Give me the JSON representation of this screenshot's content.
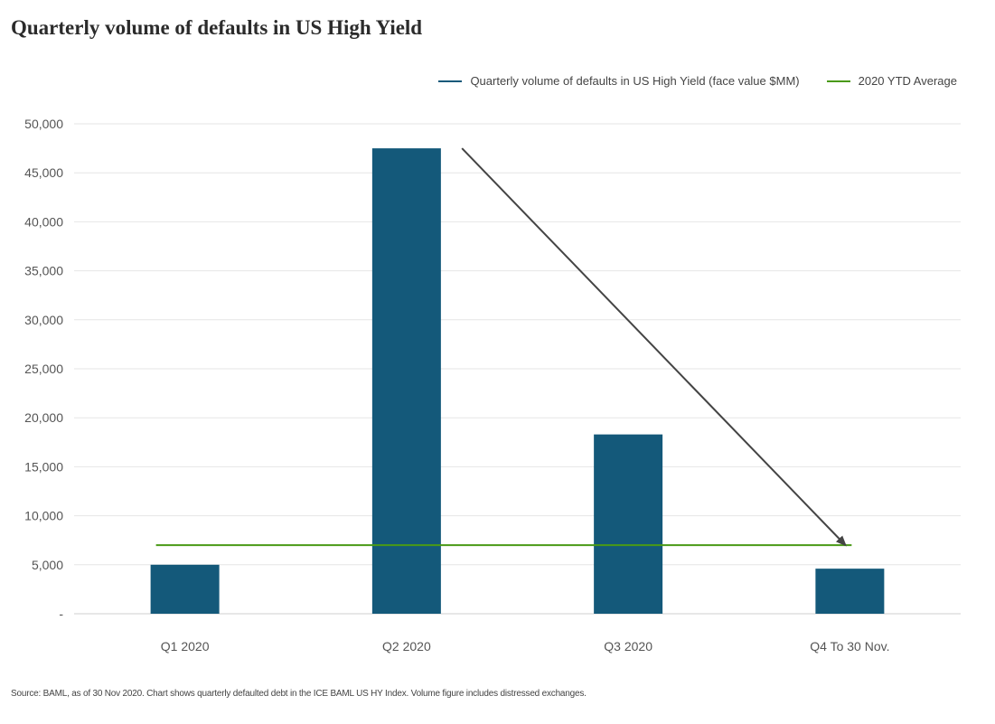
{
  "chart_data": {
    "type": "bar",
    "title": "Quarterly volume of defaults in US High Yield",
    "categories": [
      "Q1 2020",
      "Q2 2020",
      "Q3 2020",
      "Q4 To 30 Nov."
    ],
    "series": [
      {
        "name": "Quarterly volume of defaults in US High Yield (face value $MM)",
        "values": [
          5000,
          47500,
          18300,
          4600
        ],
        "color": "#14597a"
      }
    ],
    "reference_line": {
      "name": "2020 YTD Average",
      "value": 7000,
      "color": "#4a9a16"
    },
    "annotation": {
      "type": "arrow",
      "from": {
        "category_index": 1.25,
        "value": 47500
      },
      "to": {
        "category_index": 2.98,
        "value": 7000
      },
      "color": "#444444"
    },
    "ylim": [
      0,
      50000
    ],
    "yticks": [
      0,
      5000,
      10000,
      15000,
      20000,
      25000,
      30000,
      35000,
      40000,
      45000,
      50000
    ],
    "ytick_labels": [
      "-",
      "5,000",
      "10,000",
      "15,000",
      "20,000",
      "25,000",
      "30,000",
      "35,000",
      "40,000",
      "45,000",
      "50,000"
    ],
    "grid": true,
    "legend_position": "top-right",
    "xlabel": "",
    "ylabel": ""
  },
  "source_note": "Source: BAML, as of 30 Nov 2020. Chart shows quarterly defaulted debt in the ICE BAML US HY Index. Volume figure includes distressed exchanges."
}
